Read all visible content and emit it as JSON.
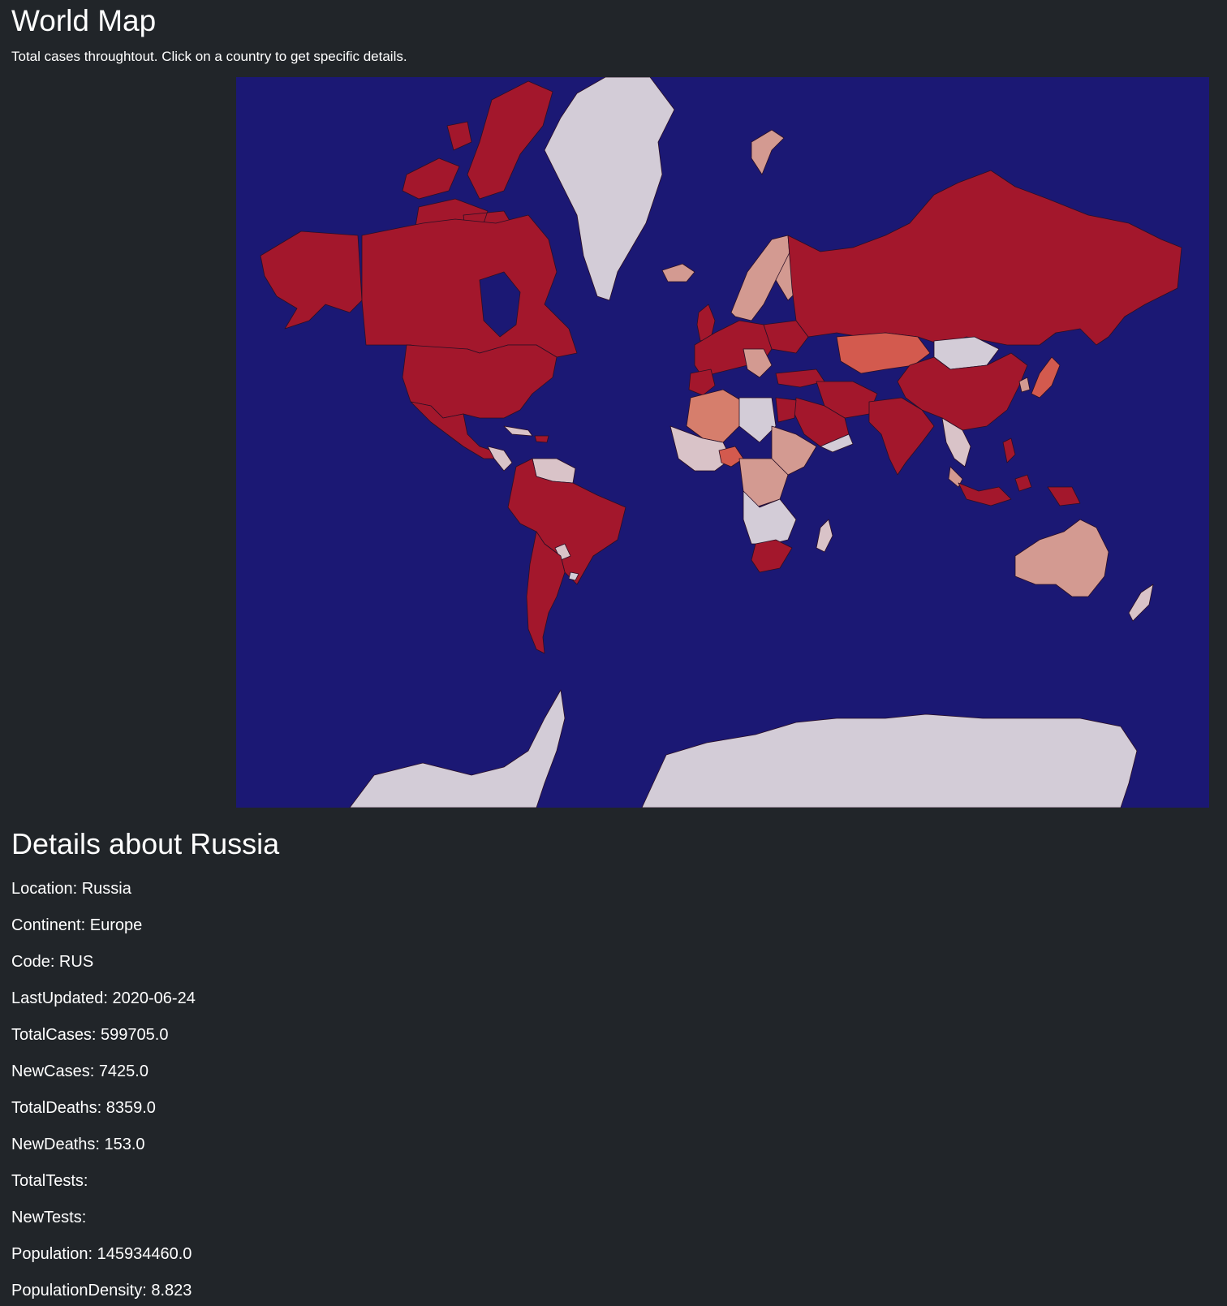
{
  "header": {
    "title": "World Map",
    "subtitle": "Total cases throughtout. Click on a country to get specific details."
  },
  "map": {
    "colors": {
      "ocean": "#1b1874",
      "very_high": "#a3172c",
      "high": "#d35a4e",
      "medium": "#d67e6c",
      "low": "#d39a91",
      "very_low": "#d9c3c8",
      "none": "#d3ccd7"
    },
    "selected_country": "Russia"
  },
  "details": {
    "title": "Details about Russia",
    "fields": [
      "Location: Russia",
      "Continent: Europe",
      "Code: RUS",
      "LastUpdated: 2020-06-24",
      "TotalCases: 599705.0",
      "NewCases: 7425.0",
      "TotalDeaths: 8359.0",
      "NewDeaths: 153.0",
      "TotalTests:",
      "NewTests:",
      "Population: 145934460.0",
      "PopulationDensity: 8.823"
    ]
  }
}
